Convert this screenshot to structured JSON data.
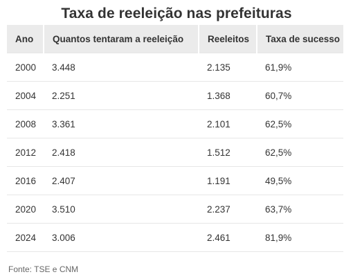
{
  "title": "Taxa de reeleição nas prefeituras",
  "table": {
    "headers": [
      "Ano",
      "Quantos tentaram a reeleição",
      "Reeleitos",
      "Taxa de sucesso"
    ],
    "rows": [
      [
        "2000",
        "3.448",
        "2.135",
        "61,9%"
      ],
      [
        "2004",
        "2.251",
        "1.368",
        "60,7%"
      ],
      [
        "2008",
        "3.361",
        "2.101",
        "62,5%"
      ],
      [
        "2012",
        "2.418",
        "1.512",
        "62,5%"
      ],
      [
        "2016",
        "2.407",
        "1.191",
        "49,5%"
      ],
      [
        "2020",
        "3.510",
        "2.237",
        "63,7%"
      ],
      [
        "2024",
        "3.006",
        "2.461",
        "81,9%"
      ]
    ]
  },
  "source": "Fonte: TSE e CNM",
  "colors": {
    "header_bg": "#ebebeb",
    "text": "#333333",
    "divider": "#e6e6e6"
  }
}
